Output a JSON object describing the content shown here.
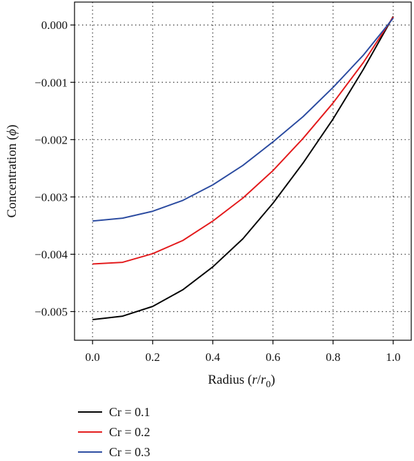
{
  "chart_data": {
    "type": "line",
    "xlabel": {
      "main": "Radius (",
      "var": "r",
      "slash": "/",
      "sub_var": "r",
      "sub": "0",
      "close": ")"
    },
    "ylabel": {
      "main": "Concentration (",
      "sym": "ϕ",
      "close": ")"
    },
    "xlim": [
      -0.06,
      1.06
    ],
    "ylim": [
      -0.0055,
      0.0004
    ],
    "x_ticks": [
      0.0,
      0.2,
      0.4,
      0.6,
      0.8,
      1.0
    ],
    "x_tick_labels": [
      "0.0",
      "0.2",
      "0.4",
      "0.6",
      "0.8",
      "1.0"
    ],
    "y_ticks": [
      0.0,
      -0.001,
      -0.002,
      -0.003,
      -0.004,
      -0.005
    ],
    "y_tick_labels": [
      "0.000",
      "−0.001",
      "−0.002",
      "−0.003",
      "−0.004",
      "−0.005"
    ],
    "grid": true,
    "legend_position": "below",
    "x": [
      0.0,
      0.1,
      0.2,
      0.3,
      0.4,
      0.5,
      0.6,
      0.7,
      0.8,
      0.9,
      1.0
    ],
    "series": [
      {
        "name": "Cr = 0.1",
        "color": "#000000",
        "values": [
          -0.00514,
          -0.00508,
          -0.00491,
          -0.00462,
          -0.00422,
          -0.00373,
          -0.00311,
          -0.00241,
          -0.00164,
          -0.00078,
          0.00015
        ]
      },
      {
        "name": "Cr = 0.2",
        "color": "#e31a1c",
        "values": [
          -0.00417,
          -0.00414,
          -0.00399,
          -0.00376,
          -0.00342,
          -0.00302,
          -0.00254,
          -0.00198,
          -0.00136,
          -0.00066,
          0.00014
        ]
      },
      {
        "name": "Cr = 0.3",
        "color": "#2b4ba0",
        "values": [
          -0.00342,
          -0.00337,
          -0.00325,
          -0.00306,
          -0.00279,
          -0.00245,
          -0.00204,
          -0.0016,
          -0.00109,
          -0.00053,
          0.00012
        ]
      }
    ]
  }
}
